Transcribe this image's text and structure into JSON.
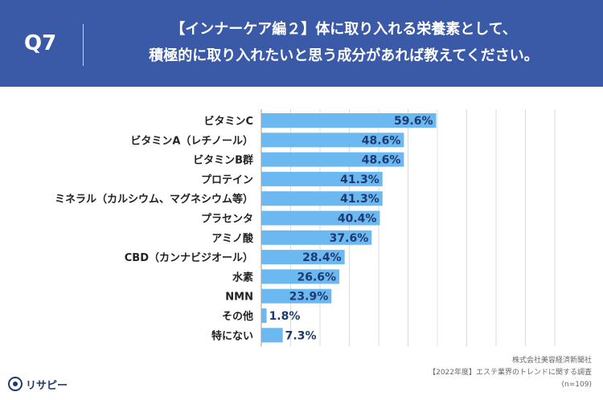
{
  "header": {
    "question_number": "Q7",
    "title_line1": "【インナーケア編２】体に取り入れる栄養素として、",
    "title_line2": "積極的に取り入れたいと思う成分があれば教えてください。"
  },
  "source": {
    "company": "株式会社美容経済新聞社",
    "survey": "【2022年度】エステ業界のトレンドに関する調査",
    "sample": "(n=109)"
  },
  "logo": {
    "text": "リサピー"
  },
  "colors": {
    "bar": "#6cb8f0",
    "header": "#3a5aa8",
    "value_text": "#1f3a70"
  },
  "chart_data": {
    "type": "bar",
    "orientation": "horizontal",
    "title": "",
    "xlabel": "",
    "ylabel": "",
    "xlim": [
      0,
      100
    ],
    "grid": true,
    "categories": [
      "ビタミンC",
      "ビタミンA（レチノール）",
      "ビタミンB群",
      "プロテイン",
      "ミネラル（カルシウム、マグネシウム等）",
      "プラセンタ",
      "アミノ酸",
      "CBD（カンナビジオール）",
      "水素",
      "NMN",
      "その他",
      "特にない"
    ],
    "values": [
      59.6,
      48.6,
      48.6,
      41.3,
      41.3,
      40.4,
      37.6,
      28.4,
      26.6,
      23.9,
      1.8,
      7.3
    ],
    "value_labels": [
      "59.6%",
      "48.6%",
      "48.6%",
      "41.3%",
      "41.3%",
      "40.4%",
      "37.6%",
      "28.4%",
      "26.6%",
      "23.9%",
      "1.8%",
      "7.3%"
    ]
  }
}
